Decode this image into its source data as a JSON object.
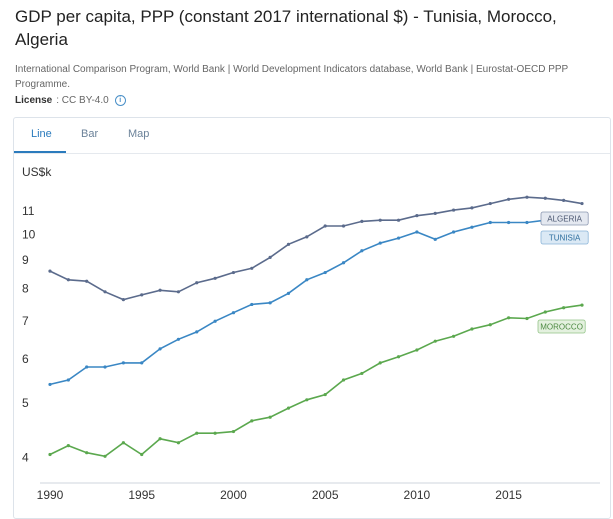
{
  "title": "GDP per capita, PPP (constant 2017 international $) - Tunisia, Morocco, Algeria",
  "source": "International Comparison Program, World Bank | World Development Indicators database, World Bank | Eurostat-OECD PPP Programme.",
  "license": {
    "label": "License",
    "value": ": CC BY-4.0",
    "info_icon": "info-icon"
  },
  "tabs": [
    {
      "label": "Line",
      "active": true
    },
    {
      "label": "Bar",
      "active": false
    },
    {
      "label": "Map",
      "active": false
    }
  ],
  "colors": {
    "algeria": "#5b6b8c",
    "tunisia": "#3a87c4",
    "morocco": "#5ba84e",
    "accent": "#2b7bbd"
  },
  "chart_data": {
    "type": "line",
    "ylabel": "US$k",
    "yticks": [
      4,
      5,
      6,
      7,
      8,
      9,
      10,
      11
    ],
    "ylim": [
      3.8,
      12
    ],
    "xticks": [
      1990,
      1995,
      2000,
      2005,
      2010,
      2015
    ],
    "x": [
      1990,
      1991,
      1992,
      1993,
      1994,
      1995,
      1996,
      1997,
      1998,
      1999,
      2000,
      2001,
      2002,
      2003,
      2004,
      2005,
      2006,
      2007,
      2008,
      2009,
      2010,
      2011,
      2012,
      2013,
      2014,
      2015,
      2016,
      2017,
      2018,
      2019
    ],
    "series": [
      {
        "name": "ALGERIA",
        "color": "#5b6b8c",
        "values": [
          8.6,
          8.3,
          8.25,
          7.9,
          7.65,
          7.8,
          7.95,
          7.9,
          8.2,
          8.35,
          8.55,
          8.7,
          9.1,
          9.6,
          9.9,
          10.35,
          10.35,
          10.55,
          10.6,
          10.6,
          10.8,
          10.9,
          11.05,
          11.15,
          11.35,
          11.55,
          11.65,
          11.6,
          11.5,
          11.35
        ]
      },
      {
        "name": "TUNISIA",
        "color": "#3a87c4",
        "values": [
          5.4,
          5.5,
          5.8,
          5.8,
          5.9,
          5.9,
          6.25,
          6.5,
          6.7,
          7.0,
          7.25,
          7.5,
          7.55,
          7.85,
          8.3,
          8.55,
          8.9,
          9.35,
          9.65,
          9.85,
          10.1,
          9.8,
          10.1,
          10.3,
          10.5,
          10.5,
          10.5,
          10.6,
          10.75,
          10.75
        ]
      },
      {
        "name": "MOROCCO",
        "color": "#5ba84e",
        "values": [
          4.05,
          4.2,
          4.08,
          4.02,
          4.25,
          4.05,
          4.32,
          4.25,
          4.42,
          4.42,
          4.45,
          4.65,
          4.72,
          4.9,
          5.07,
          5.18,
          5.5,
          5.65,
          5.9,
          6.05,
          6.22,
          6.45,
          6.58,
          6.78,
          6.9,
          7.1,
          7.08,
          7.27,
          7.4,
          7.48
        ]
      }
    ]
  }
}
